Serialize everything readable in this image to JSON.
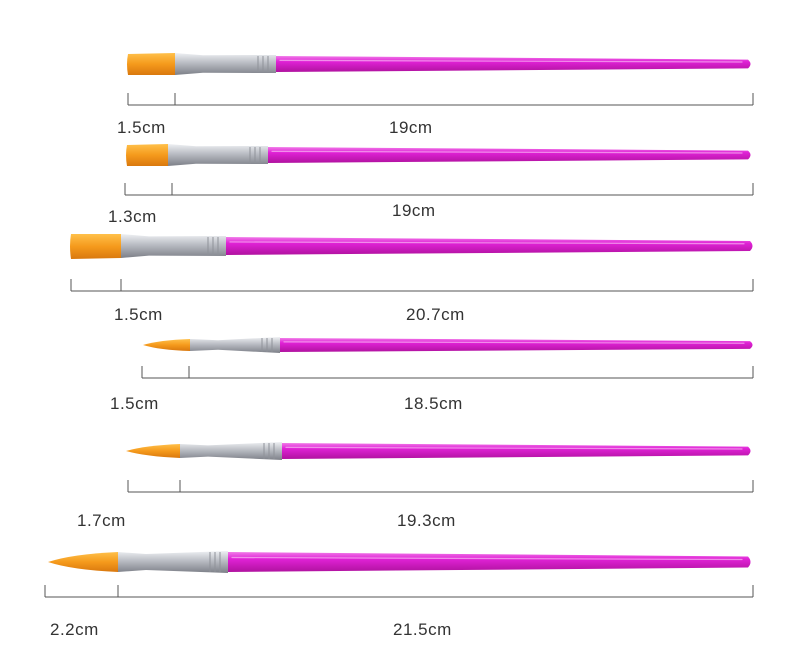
{
  "colors": {
    "handle": "#e022d6",
    "handle_highlight": "#f07ae8",
    "ferrule": "#b9bcc3",
    "bristle": "#f59a1c",
    "bristle_tip": "#ffc04a",
    "dimension_line": "#555555"
  },
  "brushes": [
    {
      "shape": "flat",
      "head_label": "1.5cm",
      "total_label": "19cm"
    },
    {
      "shape": "flat",
      "head_label": "1.3cm",
      "total_label": "19cm"
    },
    {
      "shape": "flat",
      "head_label": "1.5cm",
      "total_label": "20.7cm"
    },
    {
      "shape": "round",
      "head_label": "1.5cm",
      "total_label": "18.5cm"
    },
    {
      "shape": "round",
      "head_label": "1.7cm",
      "total_label": "19.3cm"
    },
    {
      "shape": "round",
      "head_label": "2.2cm",
      "total_label": "21.5cm"
    }
  ]
}
